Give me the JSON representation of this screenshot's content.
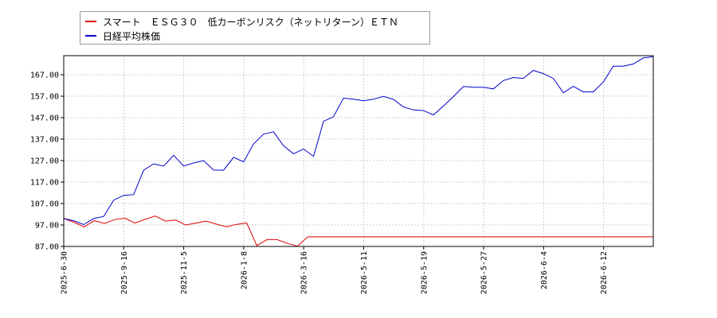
{
  "chart_data": {
    "type": "line",
    "ylim": [
      87.0,
      172.0
    ],
    "y_ticks": [
      "87.00",
      "97.00",
      "107.00",
      "117.00",
      "127.00",
      "137.00",
      "147.00",
      "157.00",
      "167.00"
    ],
    "x_tick_labels": [
      "2025-6-30",
      "2025-9-16",
      "2025-11-5",
      "2026-1-8",
      "2026-3-16",
      "2026-5-11",
      "2026-5-19",
      "2026-5-27",
      "2026-6-4",
      "2026-6-12"
    ],
    "grid": true,
    "legend_position": "top-left",
    "series": [
      {
        "name": "スマート　ＥＳＧ３０　低カーボンリスク（ネットリターン）ＥＴＮ",
        "color": "#dd0000",
        "values": [
          100.0,
          98.3,
          96.1,
          99.0,
          97.7,
          99.5,
          100.2,
          97.9,
          99.6,
          101.2,
          98.8,
          99.3,
          97.0,
          97.9,
          98.8,
          97.4,
          96.2,
          97.3,
          97.9,
          87.4,
          90.2,
          90.2,
          88.4,
          87.1,
          91.5,
          91.5,
          91.5,
          91.5,
          91.5,
          91.5,
          91.5,
          91.5,
          91.5,
          91.5,
          91.5,
          91.5,
          91.5,
          91.5,
          91.5,
          91.5,
          91.5,
          91.5,
          91.5,
          91.5,
          91.5,
          91.5,
          91.5,
          91.5,
          91.5,
          91.5,
          91.5,
          91.5,
          91.5,
          91.5,
          91.5,
          91.5,
          91.5,
          91.5,
          91.5
        ]
      },
      {
        "name": "日経平均株価",
        "color": "#0000cc",
        "values": [
          100.0,
          99.0,
          97.2,
          100.0,
          101.0,
          108.6,
          110.8,
          111.2,
          122.5,
          125.5,
          124.4,
          129.5,
          124.5,
          125.9,
          127.0,
          122.6,
          122.5,
          128.5,
          126.4,
          134.8,
          139.3,
          140.4,
          133.9,
          130.2,
          132.4,
          129.0,
          145.3,
          147.4,
          156.1,
          155.6,
          154.9,
          155.6,
          156.9,
          155.5,
          152.0,
          150.6,
          150.3,
          148.3,
          152.4,
          156.8,
          161.5,
          161.2,
          161.2,
          160.4,
          164.3,
          165.7,
          165.3,
          169.0,
          167.5,
          165.3,
          158.6,
          161.6,
          159.0,
          159.0,
          163.6,
          171.0,
          171.0,
          172.0,
          174.8,
          175.4
        ]
      }
    ]
  }
}
